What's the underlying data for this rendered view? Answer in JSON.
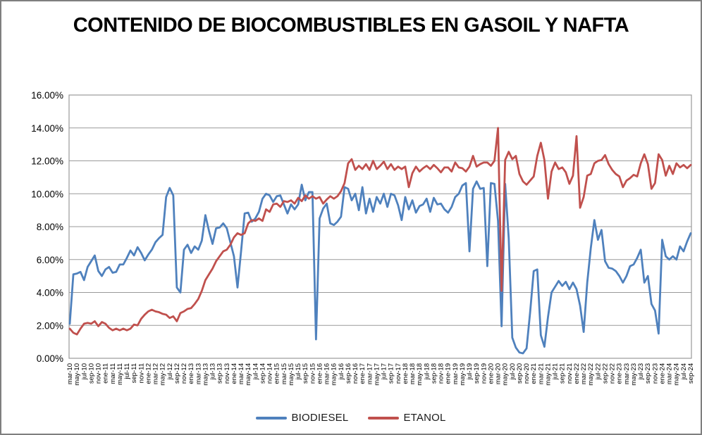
{
  "title": "CONTENIDO DE BIOCOMBUSTIBLES EN GASOIL Y NAFTA",
  "legend": {
    "items": [
      {
        "label": "BIODIESEL",
        "color": "#4F81BD"
      },
      {
        "label": "ETANOL",
        "color": "#C0504D"
      }
    ],
    "position": "bottom"
  },
  "colors": {
    "biodiesel": "#4F81BD",
    "etanol": "#C0504D",
    "gridline": "#9a9a9a",
    "plot_border": "#9a9a9a",
    "text": "#000000"
  },
  "chart_data": {
    "type": "line",
    "title": "CONTENIDO DE BIOCOMBUSTIBLES EN GASOIL Y NAFTA",
    "xlabel": "",
    "ylabel": "",
    "ylim": [
      0,
      16
    ],
    "grid": true,
    "legend_position": "bottom",
    "ytick_labels": [
      "0.00%",
      "2.00%",
      "4.00%",
      "6.00%",
      "8.00%",
      "10.00%",
      "12.00%",
      "14.00%",
      "16.00%"
    ],
    "points_per_x_label": 2,
    "x_tick_labels": [
      "mar-10",
      "may-10",
      "jul-10",
      "sep-10",
      "nov-10",
      "ene-11",
      "mar-11",
      "may-11",
      "jul-11",
      "sep-11",
      "nov-11",
      "ene-12",
      "mar-12",
      "may-12",
      "jul-12",
      "sep-12",
      "nov-12",
      "ene-13",
      "mar-13",
      "may-13",
      "jul-13",
      "sep-13",
      "nov-13",
      "ene-14",
      "mar-14",
      "may-14",
      "jul-14",
      "sep-14",
      "nov-14",
      "ene-15",
      "mar-15",
      "may-15",
      "jul-15",
      "sep-15",
      "nov-15",
      "ene-16",
      "mar-16",
      "may-16",
      "jul-16",
      "sep-16",
      "nov-16",
      "ene-17",
      "mar-17",
      "may-17",
      "jul-17",
      "sep-17",
      "nov-17",
      "ene-18",
      "mar-18",
      "may-18",
      "jul-18",
      "sep-18",
      "nov-18",
      "ene-19",
      "mar-19",
      "may-19",
      "jul-19",
      "sep-19",
      "nov-19",
      "ene-20",
      "mar-20",
      "may-20",
      "jul-20",
      "sep-20",
      "nov-20",
      "ene-21",
      "mar-21",
      "may-21",
      "jul-21",
      "sep-21",
      "nov-21",
      "ene-22",
      "mar-22",
      "may-22",
      "jul-22",
      "sep-22",
      "nov-22",
      "ene-23",
      "mar-23",
      "may-23",
      "jul-23",
      "sep-23",
      "nov-23",
      "ene-24",
      "mar-24",
      "may-24",
      "jul-24",
      "sep-24"
    ],
    "series": [
      {
        "name": "BIODIESEL",
        "color": "#4F81BD",
        "unit": "%",
        "values": [
          2.1,
          5.1,
          5.15,
          5.25,
          4.75,
          5.55,
          5.9,
          6.25,
          5.3,
          5.0,
          5.4,
          5.55,
          5.2,
          5.25,
          5.7,
          5.7,
          6.1,
          6.55,
          6.25,
          6.75,
          6.4,
          5.95,
          6.3,
          6.6,
          7.05,
          7.3,
          7.5,
          9.8,
          10.35,
          9.9,
          4.3,
          4.0,
          6.6,
          6.9,
          6.4,
          6.8,
          6.6,
          7.15,
          8.7,
          7.75,
          6.95,
          7.9,
          7.95,
          8.2,
          7.9,
          7.05,
          6.2,
          4.3,
          6.5,
          8.8,
          8.85,
          8.3,
          8.5,
          8.9,
          9.7,
          10.0,
          9.9,
          9.5,
          9.85,
          9.9,
          9.35,
          8.8,
          9.35,
          9.05,
          9.35,
          10.55,
          9.6,
          10.1,
          10.1,
          1.15,
          8.5,
          9.1,
          9.4,
          8.2,
          8.1,
          8.3,
          8.6,
          10.4,
          10.3,
          9.6,
          10.0,
          9.0,
          10.4,
          8.8,
          9.7,
          8.9,
          9.8,
          9.4,
          10.0,
          9.2,
          10.0,
          9.9,
          9.3,
          8.4,
          9.8,
          9.05,
          9.6,
          8.85,
          9.25,
          9.35,
          9.7,
          8.9,
          9.75,
          9.35,
          9.4,
          9.05,
          8.85,
          9.2,
          9.8,
          10.0,
          10.5,
          10.65,
          6.5,
          10.3,
          10.75,
          10.3,
          10.35,
          5.6,
          10.65,
          10.6,
          8.35,
          1.95,
          10.6,
          7.3,
          1.25,
          0.65,
          0.35,
          0.3,
          0.6,
          2.8,
          5.3,
          5.4,
          1.4,
          0.7,
          2.5,
          4.0,
          4.35,
          4.7,
          4.4,
          4.65,
          4.2,
          4.6,
          4.2,
          3.2,
          1.6,
          4.6,
          6.7,
          8.4,
          7.2,
          7.8,
          5.9,
          5.5,
          5.45,
          5.3,
          5.0,
          4.6,
          5.0,
          5.6,
          5.7,
          6.1,
          6.6,
          4.6,
          5.0,
          3.3,
          2.9,
          1.5,
          7.2,
          6.2,
          6.0,
          6.2,
          6.0,
          6.8,
          6.5,
          7.1,
          7.6
        ]
      },
      {
        "name": "ETANOL",
        "color": "#C0504D",
        "unit": "%",
        "values": [
          1.8,
          1.55,
          1.45,
          1.8,
          2.1,
          2.15,
          2.1,
          2.25,
          1.95,
          2.2,
          2.1,
          1.85,
          1.7,
          1.8,
          1.7,
          1.8,
          1.7,
          1.8,
          2.05,
          2.0,
          2.4,
          2.65,
          2.85,
          2.95,
          2.85,
          2.8,
          2.7,
          2.65,
          2.45,
          2.55,
          2.25,
          2.75,
          2.85,
          3.0,
          3.05,
          3.3,
          3.6,
          4.1,
          4.75,
          5.1,
          5.45,
          5.9,
          6.2,
          6.5,
          6.6,
          6.9,
          7.35,
          7.6,
          7.5,
          7.6,
          8.2,
          8.4,
          8.35,
          8.5,
          8.35,
          9.05,
          8.9,
          9.35,
          9.4,
          9.2,
          9.55,
          9.5,
          9.6,
          9.4,
          9.75,
          9.55,
          9.9,
          9.7,
          9.85,
          9.7,
          9.8,
          9.4,
          9.65,
          9.85,
          9.7,
          9.85,
          10.15,
          10.65,
          11.85,
          12.1,
          11.45,
          11.7,
          11.5,
          11.8,
          11.45,
          12.0,
          11.5,
          11.7,
          11.95,
          11.5,
          11.8,
          11.45,
          11.65,
          11.5,
          11.65,
          10.4,
          11.25,
          11.65,
          11.35,
          11.55,
          11.7,
          11.5,
          11.75,
          11.55,
          11.3,
          11.6,
          11.6,
          11.35,
          11.9,
          11.6,
          11.55,
          11.35,
          11.65,
          12.3,
          11.65,
          11.8,
          11.9,
          11.9,
          11.7,
          12.0,
          14.0,
          4.1,
          12.05,
          12.55,
          12.1,
          12.3,
          11.2,
          10.75,
          10.55,
          10.8,
          11.05,
          12.3,
          13.1,
          12.05,
          9.7,
          11.35,
          11.9,
          11.5,
          11.6,
          11.3,
          10.6,
          11.1,
          13.5,
          9.15,
          9.8,
          11.1,
          11.2,
          11.85,
          12.0,
          12.05,
          12.35,
          11.8,
          11.45,
          11.2,
          11.05,
          10.4,
          10.8,
          10.95,
          11.15,
          11.05,
          11.85,
          12.4,
          11.8,
          10.3,
          10.65,
          12.4,
          12.05,
          11.1,
          11.7,
          11.2,
          11.85,
          11.6,
          11.75,
          11.55,
          11.75
        ]
      }
    ]
  }
}
